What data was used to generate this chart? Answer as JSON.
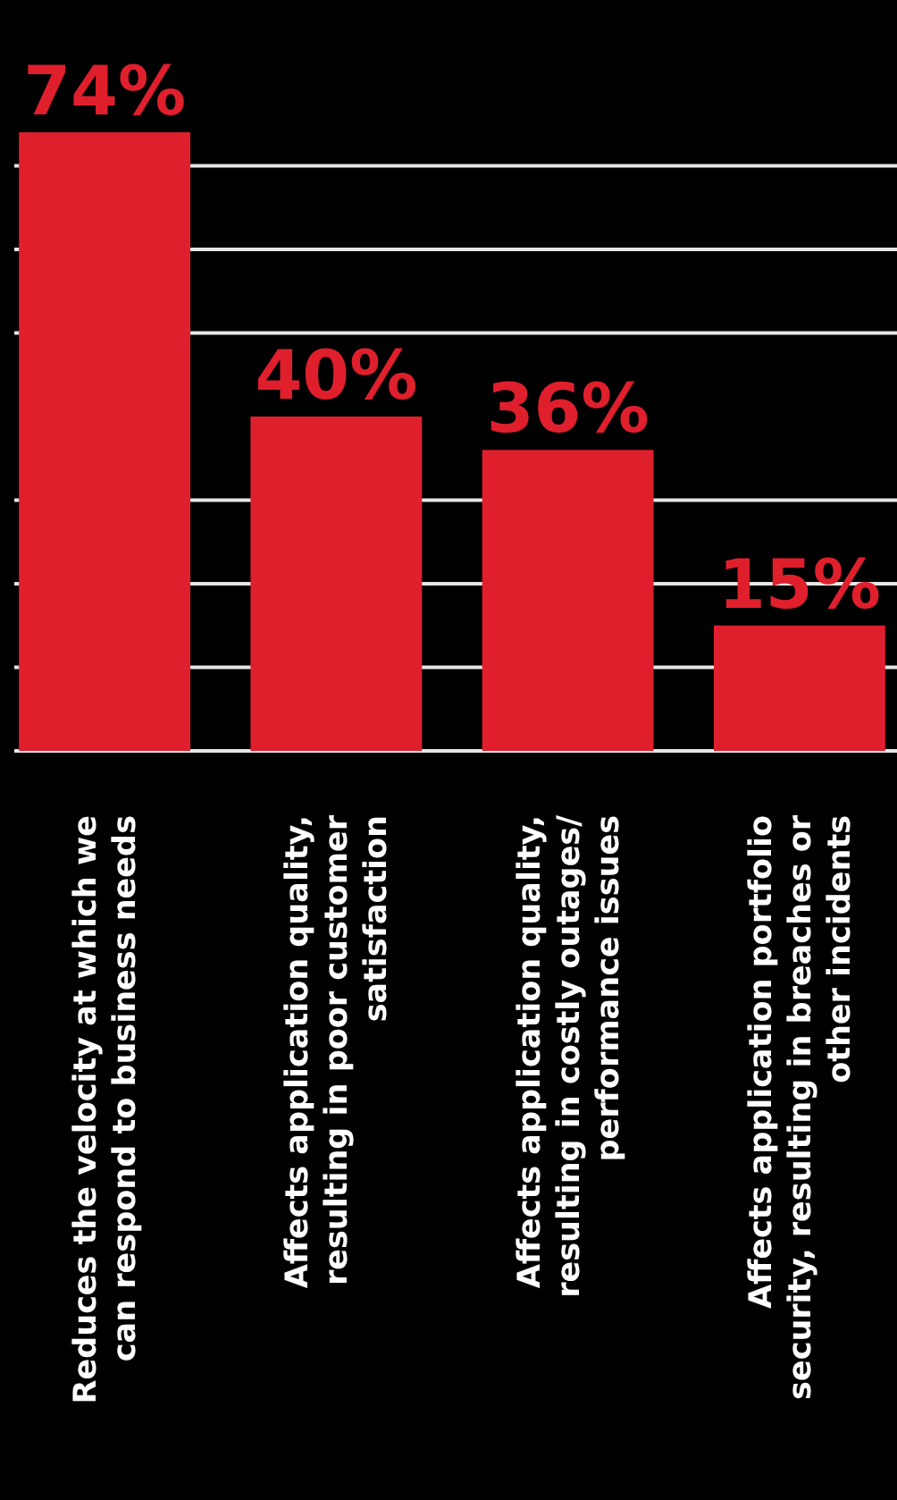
{
  "chart_data": {
    "type": "bar",
    "categories": [
      "Reduces the velocity at which we can respond to business needs",
      "Affects application quality, resulting in poor customer satisfaction",
      "Affects application quality, resulting in costly outages/ performance issues",
      "Affects application portfolio security, resulting in breaches or other incidents"
    ],
    "values": [
      74,
      40,
      36,
      15
    ],
    "color": "#e01f2d",
    "value_labels": [
      "74%",
      "40%",
      "36%",
      "15%"
    ],
    "ylim": [
      0,
      74
    ],
    "yticks": [
      {
        "value": 0,
        "label": null
      },
      {
        "value": 10,
        "label": null
      },
      {
        "value": 20,
        "label": null
      },
      {
        "value": 30,
        "label": null
      },
      {
        "value": 50,
        "label": null
      },
      {
        "value": 60,
        "label": null
      },
      {
        "value": 70,
        "label": null
      }
    ],
    "grid": "y",
    "tick_labels": "x"
  }
}
